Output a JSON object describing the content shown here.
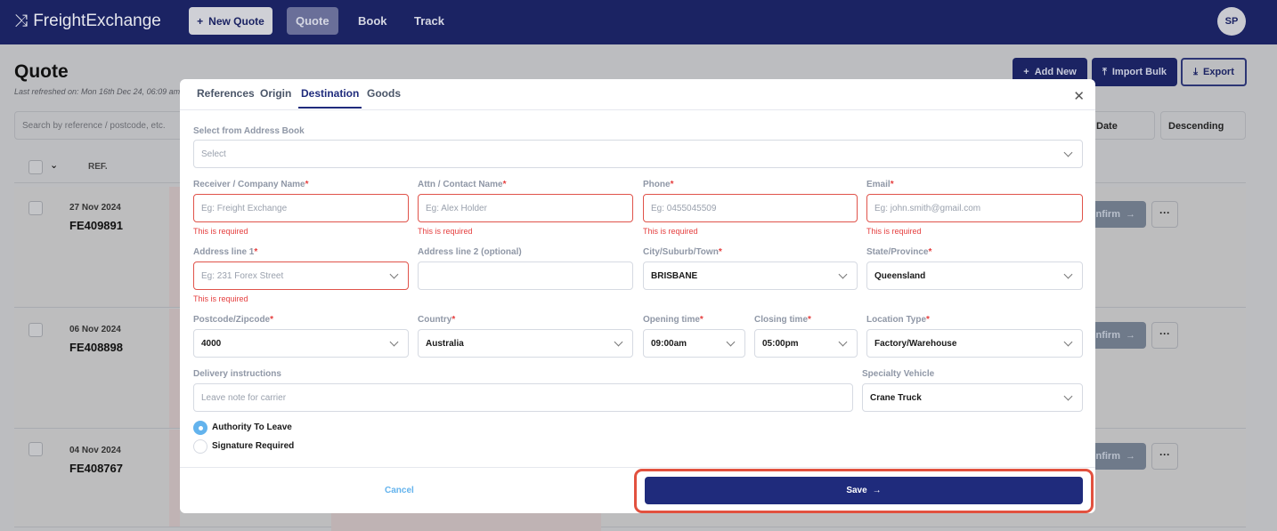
{
  "nav": {
    "logo": "FreightExchange",
    "new_quote": "New Quote",
    "links": [
      "Quote",
      "Book",
      "Track"
    ],
    "avatar": "SP"
  },
  "page": {
    "title": "Quote",
    "refreshed": "Last refreshed on: Mon 16th Dec 24, 06:09 am",
    "search_placeholder": "Search by reference / postcode, etc.",
    "add_new": "Add New",
    "import_bulk": "Import Bulk",
    "export": "Export",
    "sort_by": "Date",
    "sort_order": "Descending",
    "col_ref": "REF."
  },
  "rows": [
    {
      "date": "27 Nov 2024",
      "ref": "FE409891"
    },
    {
      "date": "06 Nov 2024",
      "ref": "FE408898"
    },
    {
      "date": "04 Nov 2024",
      "ref": "FE408767"
    }
  ],
  "row_actions": {
    "confirm": "Confirm",
    "more": "···"
  },
  "modal": {
    "tabs": [
      "References",
      "Origin",
      "Destination",
      "Goods"
    ],
    "active_tab": "Destination",
    "address_book": {
      "label": "Select from Address Book",
      "value": "Select"
    },
    "fields": {
      "company": {
        "label": "Receiver / Company Name",
        "placeholder": "Eg: Freight Exchange",
        "error": "This is required"
      },
      "contact": {
        "label": "Attn / Contact Name",
        "placeholder": "Eg: Alex Holder",
        "error": "This is required"
      },
      "phone": {
        "label": "Phone",
        "placeholder": "Eg: 0455045509",
        "error": "This is required"
      },
      "email": {
        "label": "Email",
        "placeholder": "Eg: john.smith@gmail.com",
        "error": "This is required"
      },
      "address1": {
        "label": "Address line 1",
        "placeholder": "Eg: 231 Forex Street",
        "error": "This is required"
      },
      "address2": {
        "label": "Address line 2 (optional)",
        "value": ""
      },
      "city": {
        "label": "City/Suburb/Town",
        "value": "BRISBANE"
      },
      "state": {
        "label": "State/Province",
        "value": "Queensland"
      },
      "postcode": {
        "label": "Postcode/Zipcode",
        "value": "4000"
      },
      "country": {
        "label": "Country",
        "value": "Australia"
      },
      "opening": {
        "label": "Opening time",
        "value": "09:00am"
      },
      "closing": {
        "label": "Closing time",
        "value": "05:00pm"
      },
      "location_type": {
        "label": "Location Type",
        "value": "Factory/Warehouse"
      },
      "instructions": {
        "label": "Delivery instructions",
        "placeholder": "Leave note for carrier"
      },
      "vehicle": {
        "label": "Specialty Vehicle",
        "value": "Crane Truck"
      }
    },
    "radios": [
      {
        "label": "Authority To Leave",
        "checked": true
      },
      {
        "label": "Signature Required",
        "checked": false
      }
    ],
    "cancel": "Cancel",
    "save": "Save"
  },
  "colors": {
    "brand": "#1b2363",
    "save": "#1f2b7c",
    "error": "#e53e3e",
    "highlight": "#e2513f"
  }
}
